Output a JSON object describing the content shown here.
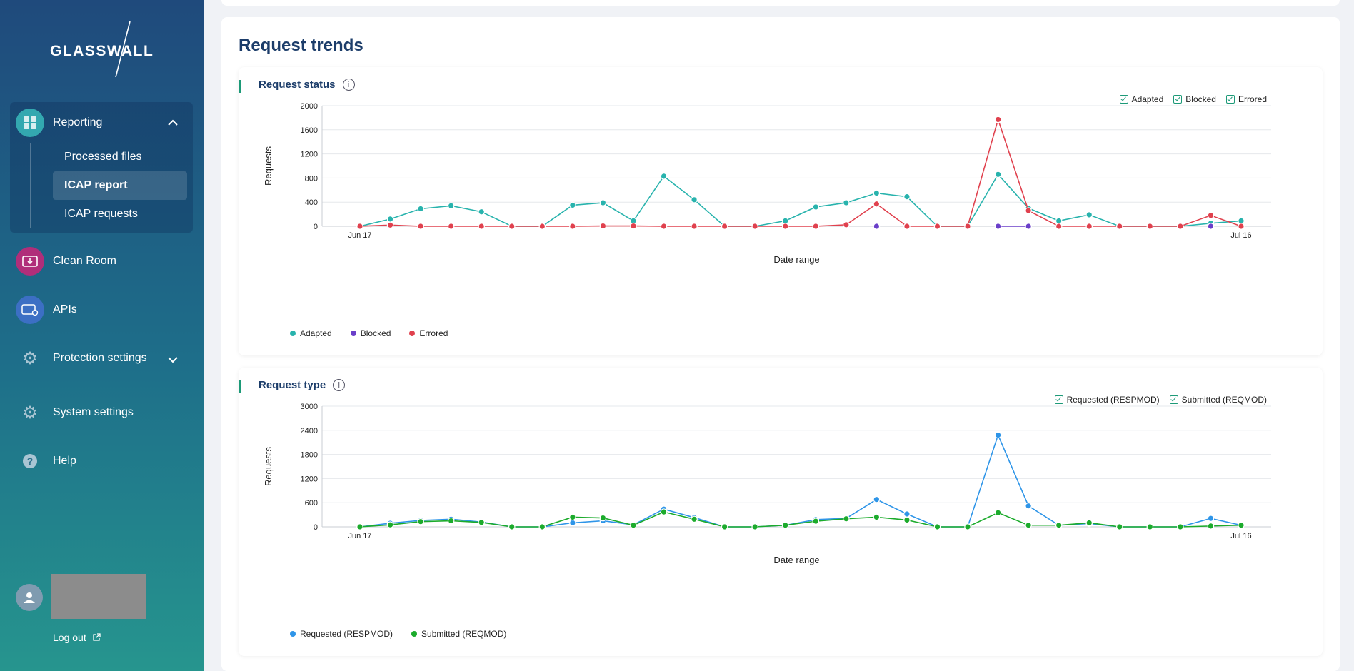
{
  "brand": {
    "logo_text": "GLASSWALL"
  },
  "sidebar": {
    "reporting": {
      "label": "Reporting"
    },
    "reporting_items": [
      {
        "label": "Processed files"
      },
      {
        "label": "ICAP report"
      },
      {
        "label": "ICAP requests"
      }
    ],
    "clean_room": {
      "label": "Clean Room"
    },
    "apis": {
      "label": "APIs"
    },
    "protection": {
      "label": "Protection settings"
    },
    "system": {
      "label": "System settings"
    },
    "help": {
      "label": "Help"
    },
    "logout": {
      "label": "Log out"
    }
  },
  "page": {
    "section_title": "Request trends"
  },
  "colors": {
    "adapted": "#28b3ad",
    "blocked": "#6a3fc9",
    "errored": "#e0414e",
    "requested": "#2e95e8",
    "submitted": "#1cab2c",
    "accent": "#1d9a78"
  },
  "chart_data": [
    {
      "type": "line",
      "title": "Request status",
      "xlabel": "Date range",
      "ylabel": "Requests",
      "ylim": [
        0,
        2000
      ],
      "yticks": [
        "0",
        "400",
        "800",
        "1200",
        "1600",
        "2000"
      ],
      "x_tick_labels": [
        "Jun 17",
        "Jul 16"
      ],
      "toggles": [
        "Adapted",
        "Blocked",
        "Errored"
      ],
      "series": [
        {
          "name": "Adapted",
          "color": "#28b3ad",
          "values": [
            0,
            120,
            290,
            340,
            240,
            0,
            0,
            350,
            390,
            90,
            830,
            440,
            0,
            0,
            90,
            320,
            390,
            550,
            490,
            0,
            0,
            860,
            300,
            90,
            190,
            0,
            0,
            0,
            50,
            90
          ]
        },
        {
          "name": "Blocked",
          "color": "#6a3fc9",
          "values": [
            null,
            null,
            null,
            null,
            null,
            null,
            null,
            null,
            null,
            null,
            null,
            null,
            null,
            null,
            null,
            null,
            null,
            0,
            null,
            null,
            null,
            0,
            0,
            null,
            null,
            null,
            null,
            null,
            0,
            null
          ]
        },
        {
          "name": "Errored",
          "color": "#e0414e",
          "values": [
            0,
            20,
            0,
            0,
            0,
            0,
            0,
            0,
            5,
            5,
            0,
            0,
            0,
            0,
            0,
            0,
            25,
            370,
            0,
            0,
            0,
            1770,
            260,
            0,
            0,
            0,
            0,
            0,
            180,
            0
          ]
        }
      ]
    },
    {
      "type": "line",
      "title": "Request type",
      "xlabel": "Date range",
      "ylabel": "Requests",
      "ylim": [
        0,
        3000
      ],
      "yticks": [
        "0",
        "600",
        "1200",
        "1800",
        "2400",
        "3000"
      ],
      "x_tick_labels": [
        "Jun 17",
        "Jul 16"
      ],
      "toggles": [
        "Requested (RESPMOD)",
        "Submitted (REQMOD)"
      ],
      "series": [
        {
          "name": "Requested (RESPMOD)",
          "color": "#2e95e8",
          "values": [
            0,
            90,
            160,
            190,
            120,
            0,
            0,
            100,
            150,
            50,
            440,
            230,
            0,
            0,
            40,
            180,
            210,
            680,
            320,
            0,
            0,
            2280,
            520,
            40,
            80,
            0,
            0,
            0,
            210,
            40
          ]
        },
        {
          "name": "Submitted (REQMOD)",
          "color": "#1cab2c",
          "values": [
            0,
            50,
            130,
            150,
            110,
            0,
            0,
            240,
            220,
            40,
            370,
            190,
            0,
            0,
            40,
            140,
            200,
            240,
            170,
            0,
            0,
            350,
            40,
            40,
            100,
            0,
            0,
            0,
            20,
            40
          ]
        }
      ]
    }
  ]
}
